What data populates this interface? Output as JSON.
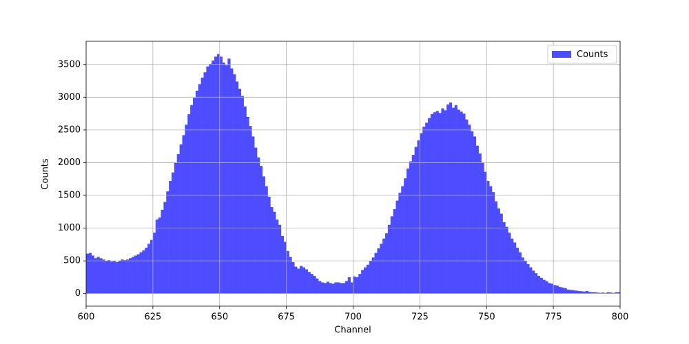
{
  "chart_data": {
    "type": "histogram",
    "xlabel": "Channel",
    "ylabel": "Counts",
    "bins": [
      600,
      601,
      602,
      603,
      604,
      605,
      606,
      607,
      608,
      609,
      610,
      611,
      612,
      613,
      614,
      615,
      616,
      617,
      618,
      619,
      620,
      621,
      622,
      623,
      624,
      625,
      626,
      627,
      628,
      629,
      630,
      631,
      632,
      633,
      634,
      635,
      636,
      637,
      638,
      639,
      640,
      641,
      642,
      643,
      644,
      645,
      646,
      647,
      648,
      649,
      650,
      651,
      652,
      653,
      654,
      655,
      656,
      657,
      658,
      659,
      660,
      661,
      662,
      663,
      664,
      665,
      666,
      667,
      668,
      669,
      670,
      671,
      672,
      673,
      674,
      675,
      676,
      677,
      678,
      679,
      680,
      681,
      682,
      683,
      684,
      685,
      686,
      687,
      688,
      689,
      690,
      691,
      692,
      693,
      694,
      695,
      696,
      697,
      698,
      699,
      700,
      701,
      702,
      703,
      704,
      705,
      706,
      707,
      708,
      709,
      710,
      711,
      712,
      713,
      714,
      715,
      716,
      717,
      718,
      719,
      720,
      721,
      722,
      723,
      724,
      725,
      726,
      727,
      728,
      729,
      730,
      731,
      732,
      733,
      734,
      735,
      736,
      737,
      738,
      739,
      740,
      741,
      742,
      743,
      744,
      745,
      746,
      747,
      748,
      749,
      750,
      751,
      752,
      753,
      754,
      755,
      756,
      757,
      758,
      759,
      760,
      761,
      762,
      763,
      764,
      765,
      766,
      767,
      768,
      769,
      770,
      771,
      772,
      773,
      774,
      775,
      776,
      777,
      778,
      779,
      780,
      781,
      782,
      783,
      784,
      785,
      786,
      787,
      788,
      789,
      790,
      791,
      792,
      793,
      794,
      795,
      796,
      797,
      798,
      799,
      800
    ],
    "series": [
      {
        "name": "Counts",
        "color": "#4d4dff",
        "values": [
          610,
          620,
          580,
          540,
          560,
          540,
          520,
          500,
          510,
          490,
          500,
          480,
          500,
          520,
          510,
          520,
          540,
          560,
          580,
          600,
          630,
          660,
          700,
          760,
          820,
          930,
          1130,
          1160,
          1280,
          1400,
          1560,
          1720,
          1850,
          2000,
          2130,
          2280,
          2420,
          2580,
          2740,
          2880,
          2990,
          3100,
          3200,
          3300,
          3380,
          3470,
          3510,
          3560,
          3620,
          3660,
          3620,
          3530,
          3490,
          3590,
          3440,
          3350,
          3240,
          3130,
          3020,
          2860,
          2700,
          2560,
          2400,
          2230,
          2080,
          1950,
          1790,
          1640,
          1480,
          1320,
          1250,
          1130,
          1050,
          880,
          790,
          650,
          560,
          480,
          410,
          380,
          420,
          400,
          370,
          330,
          300,
          270,
          230,
          190,
          170,
          160,
          180,
          160,
          150,
          170,
          170,
          160,
          160,
          190,
          250,
          170,
          260,
          250,
          300,
          360,
          400,
          440,
          500,
          550,
          620,
          690,
          760,
          840,
          920,
          1050,
          1180,
          1290,
          1420,
          1540,
          1640,
          1760,
          1910,
          2020,
          2120,
          2240,
          2340,
          2450,
          2550,
          2610,
          2680,
          2740,
          2770,
          2790,
          2760,
          2830,
          2800,
          2890,
          2920,
          2840,
          2880,
          2810,
          2780,
          2750,
          2660,
          2580,
          2480,
          2400,
          2260,
          2140,
          2000,
          1860,
          1720,
          1640,
          1550,
          1410,
          1300,
          1220,
          1090,
          1020,
          930,
          840,
          780,
          700,
          630,
          550,
          500,
          450,
          400,
          350,
          310,
          270,
          240,
          210,
          190,
          160,
          150,
          130,
          120,
          100,
          90,
          80,
          60,
          55,
          50,
          45,
          40,
          35,
          30,
          40,
          25,
          20,
          20,
          15,
          10,
          15,
          10,
          20,
          15,
          10,
          20,
          20
        ]
      }
    ],
    "xlim": [
      600,
      800
    ],
    "ylim": [
      -193,
      3855
    ],
    "xticks": [
      600,
      625,
      650,
      675,
      700,
      725,
      750,
      775,
      800
    ],
    "yticks": [
      0,
      500,
      1000,
      1500,
      2000,
      2500,
      3000,
      3500
    ],
    "grid": true,
    "legend": "upper right"
  }
}
